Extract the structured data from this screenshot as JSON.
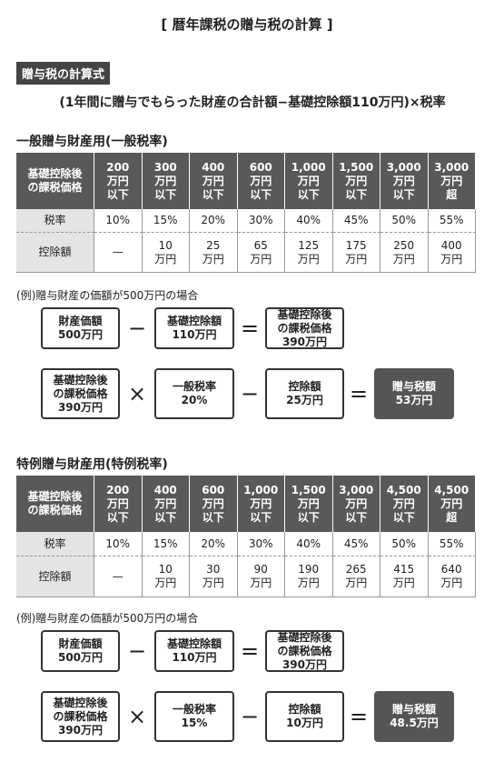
{
  "title": "[ 暦年課税の贈与税の計算 ]",
  "formula": {
    "label": "贈与税の計算式",
    "text": "(1年間に贈与でもらった財産の合計額−基礎控除額110万円)×税率"
  },
  "sections": [
    {
      "heading": "一般贈与財産用(一般税率)",
      "table": {
        "header": [
          "基礎控除後\nの課税価格",
          "200\n万円\n以下",
          "300\n万円\n以下",
          "400\n万円\n以下",
          "600\n万円\n以下",
          "1,000\n万円\n以下",
          "1,500\n万円\n以下",
          "3,000\n万円\n以下",
          "3,000\n万円\n超"
        ],
        "rows": [
          [
            "税率",
            "10%",
            "15%",
            "20%",
            "30%",
            "40%",
            "45%",
            "50%",
            "55%"
          ],
          [
            "控除額",
            "—",
            "10\n万円",
            "25\n万円",
            "65\n万円",
            "125\n万円",
            "175\n万円",
            "250\n万円",
            "400\n万円"
          ]
        ]
      },
      "example": {
        "caption": "(例)贈与財産の価額が500万円の場合",
        "row1": [
          "財産価額\n500万円",
          "−",
          "基礎控除額\n110万円",
          "=",
          "基礎控除後\nの課税価格\n390万円"
        ],
        "row2": [
          "基礎控除後\nの課税価格\n390万円",
          "×",
          "一般税率\n20%",
          "−",
          "控除額\n25万円",
          "=",
          "贈与税額\n53万円"
        ]
      }
    },
    {
      "heading": "特例贈与財産用(特例税率)",
      "table": {
        "header": [
          "基礎控除後\nの課税価格",
          "200\n万円\n以下",
          "400\n万円\n以下",
          "600\n万円\n以下",
          "1,000\n万円\n以下",
          "1,500\n万円\n以下",
          "3,000\n万円\n以下",
          "4,500\n万円\n以下",
          "4,500\n万円\n超"
        ],
        "rows": [
          [
            "税率",
            "10%",
            "15%",
            "20%",
            "30%",
            "40%",
            "45%",
            "50%",
            "55%"
          ],
          [
            "控除額",
            "—",
            "10\n万円",
            "30\n万円",
            "90\n万円",
            "190\n万円",
            "265\n万円",
            "415\n万円",
            "640\n万円"
          ]
        ]
      },
      "example": {
        "caption": "(例)贈与財産の価額が500万円の場合",
        "row1": [
          "財産価額\n500万円",
          "−",
          "基礎控除額\n110万円",
          "=",
          "基礎控除後\nの課税価格\n390万円"
        ],
        "row2": [
          "基礎控除後\nの課税価格\n390万円",
          "×",
          "一般税率\n15%",
          "−",
          "控除額\n10万円",
          "=",
          "贈与税額\n48.5万円"
        ]
      }
    }
  ]
}
